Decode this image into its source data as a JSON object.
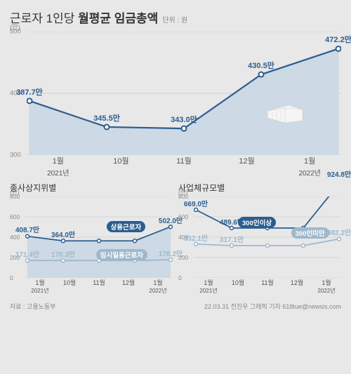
{
  "title": {
    "pre": "근로자 1인당 ",
    "bold": "월평균 임금총액",
    "unit": "단위 : 원"
  },
  "main": {
    "type": "line-area",
    "ylim": [
      300,
      500
    ],
    "yticks": [
      300,
      400,
      500
    ],
    "yunit": "(만)",
    "x": [
      {
        "month": "1월",
        "year": "2021년"
      },
      {
        "month": "10월",
        "year": ""
      },
      {
        "month": "11월",
        "year": ""
      },
      {
        "month": "12월",
        "year": ""
      },
      {
        "month": "1월",
        "year": "2022년"
      }
    ],
    "values": [
      387.7,
      345.5,
      343.0,
      430.5,
      472.2
    ],
    "value_labels": [
      "387.7만",
      "345.5만",
      "343.0만",
      "430.5만",
      "472.2만"
    ],
    "line_color": "#2b5d8f",
    "fill_color": "#cdd9e4",
    "bg": "#e8e8e8",
    "axis_color": "#999"
  },
  "small1": {
    "title": "종사상지위별",
    "ylim": [
      0,
      800
    ],
    "yticks": [
      0,
      200,
      400,
      600,
      800
    ],
    "yunit": "(만)",
    "x": [
      {
        "month": "1월",
        "year": "2021년"
      },
      {
        "month": "10월",
        "year": ""
      },
      {
        "month": "11월",
        "year": ""
      },
      {
        "month": "12월",
        "year": ""
      },
      {
        "month": "1월",
        "year": "2022년"
      }
    ],
    "series": [
      {
        "name": "상용근로자",
        "color": "#2b5d8f",
        "fill": "#cdd9e4",
        "values": [
          408.7,
          364.0,
          364.0,
          364.0,
          502.0
        ],
        "labels": [
          "408.7만",
          "364.0만",
          "",
          "",
          "502.0만"
        ],
        "badge": "상용근로자"
      },
      {
        "name": "임시일용근로자",
        "color": "#9fb8cc",
        "fill": "none",
        "values": [
          171.4,
          170.3,
          170.3,
          170.3,
          178.2
        ],
        "labels": [
          "171.4만",
          "170.3만",
          "",
          "",
          "178.2만"
        ],
        "badge": "임시일용근로자",
        "badge_bg": "#9fb8cc"
      }
    ]
  },
  "small2": {
    "title": "사업체규모별",
    "ylim": [
      0,
      800
    ],
    "yticks": [
      0,
      200,
      400,
      600,
      800
    ],
    "yunit": "(만)",
    "x": [
      {
        "month": "1월",
        "year": "2021년"
      },
      {
        "month": "10월",
        "year": ""
      },
      {
        "month": "11월",
        "year": ""
      },
      {
        "month": "12월",
        "year": ""
      },
      {
        "month": "1월",
        "year": "2022년"
      }
    ],
    "series": [
      {
        "name": "300인이상",
        "color": "#2b5d8f",
        "fill": "none",
        "values": [
          669.0,
          489.6,
          489.6,
          489.6,
          924.8
        ],
        "labels": [
          "669.0만",
          "489.6만",
          "",
          "",
          "924.8만"
        ],
        "badge": "300인이상"
      },
      {
        "name": "300인미만",
        "color": "#9fb8cc",
        "fill": "none",
        "values": [
          332.1,
          317.1,
          317.1,
          317.1,
          382.2
        ],
        "labels": [
          "332.1만",
          "317.1만",
          "",
          "",
          "382.2만"
        ],
        "badge": "300인미만",
        "badge_bg": "#9fb8cc"
      }
    ]
  },
  "footer": {
    "source": "자료 : 고용노동부",
    "credit": "22.03.31 전진우 그래픽 기자 618tue@newsis.com"
  }
}
